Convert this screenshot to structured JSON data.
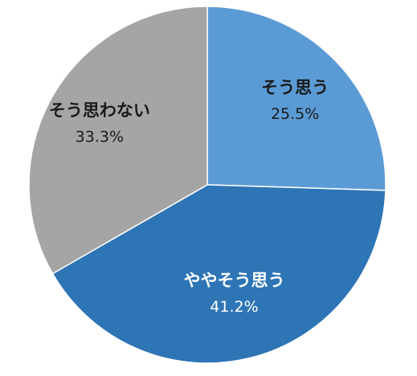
{
  "chart_data": {
    "type": "pie",
    "title": "",
    "start": "12 o'clock, clockwise",
    "slices": [
      {
        "label": "そう思う",
        "percent_label": "25.5%",
        "value": 25.5,
        "color": "#5b9bd5",
        "text_color": "#1a1a1a"
      },
      {
        "label": "ややそう思う",
        "percent_label": "41.2%",
        "value": 41.2,
        "color": "#2e75b6",
        "text_color": "#ffffff"
      },
      {
        "label": "そう思わない",
        "percent_label": "33.3%",
        "value": 33.3,
        "color": "#a5a5a5",
        "text_color": "#1a1a1a"
      }
    ],
    "legend": "none",
    "data_labels": "inside"
  }
}
